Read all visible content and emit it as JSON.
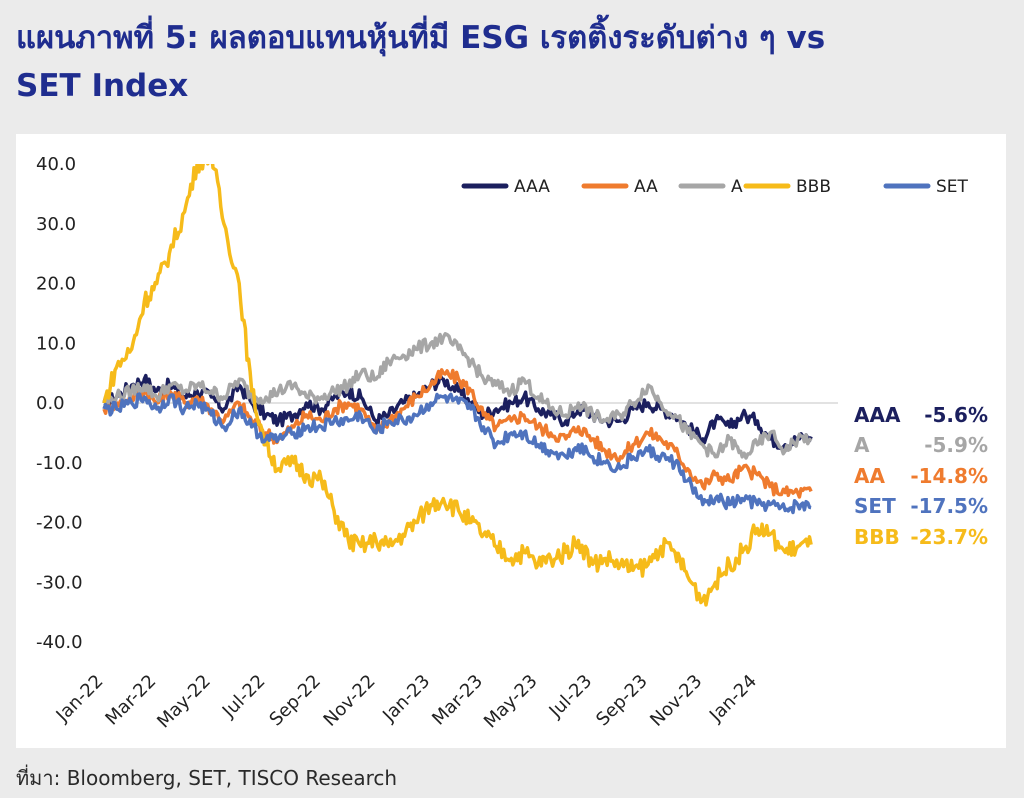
{
  "title_line1": "แผนภาพที่ 5: ผลตอบแทนหุ้นที่มี ESG เรตติ้งระดับต่าง ๆ vs",
  "title_line2": "SET Index",
  "source": "ที่มา: Bloomberg, SET, TISCO Research",
  "chart_data": {
    "type": "line",
    "title": "",
    "xlabel": "",
    "ylabel": "",
    "ylim": [
      -40,
      40
    ],
    "xlim": [
      "2022-01-01",
      "2024-03-31"
    ],
    "y_ticks": [
      "40.0",
      "30.0",
      "20.0",
      "10.0",
      "0.0",
      "-10.0",
      "-20.0",
      "-30.0",
      "-40.0"
    ],
    "x_ticks": [
      {
        "date": "2022-01-01",
        "label": "Jan-22"
      },
      {
        "date": "2022-03-01",
        "label": "Mar-22"
      },
      {
        "date": "2022-05-01",
        "label": "May-22"
      },
      {
        "date": "2022-07-01",
        "label": "Jul-22"
      },
      {
        "date": "2022-09-01",
        "label": "Sep-22"
      },
      {
        "date": "2022-11-01",
        "label": "Nov-22"
      },
      {
        "date": "2023-01-01",
        "label": "Jan-23"
      },
      {
        "date": "2023-03-01",
        "label": "Mar-23"
      },
      {
        "date": "2023-05-01",
        "label": "May-23"
      },
      {
        "date": "2023-07-01",
        "label": "Jul-23"
      },
      {
        "date": "2023-09-01",
        "label": "Sep-23"
      },
      {
        "date": "2023-11-01",
        "label": "Nov-23"
      },
      {
        "date": "2024-01-01",
        "label": "Jan-24"
      }
    ],
    "legend_position": "top-right",
    "grid": false,
    "zero_line": true,
    "x": [
      "2022-01-01",
      "2022-01-15",
      "2022-02-01",
      "2022-02-15",
      "2022-03-01",
      "2022-03-15",
      "2022-04-01",
      "2022-04-15",
      "2022-05-01",
      "2022-05-15",
      "2022-06-01",
      "2022-06-15",
      "2022-07-01",
      "2022-07-15",
      "2022-08-01",
      "2022-08-15",
      "2022-09-01",
      "2022-09-15",
      "2022-10-01",
      "2022-10-15",
      "2022-11-01",
      "2022-11-15",
      "2022-12-01",
      "2022-12-15",
      "2023-01-01",
      "2023-01-15",
      "2023-02-01",
      "2023-02-15",
      "2023-03-01",
      "2023-03-15",
      "2023-04-01",
      "2023-04-15",
      "2023-05-01",
      "2023-05-15",
      "2023-06-01",
      "2023-06-15",
      "2023-07-01",
      "2023-07-15",
      "2023-08-01",
      "2023-08-15",
      "2023-09-01",
      "2023-09-15",
      "2023-10-01",
      "2023-10-15",
      "2023-11-01",
      "2023-11-15",
      "2023-12-01",
      "2023-12-15",
      "2024-01-01",
      "2024-01-15",
      "2024-02-01",
      "2024-02-15",
      "2024-03-01"
    ],
    "series": [
      {
        "name": "AAA",
        "color": "#1b1f5e",
        "end_value": "-5.6%",
        "values": [
          0,
          1,
          3,
          4,
          2,
          3,
          1,
          2,
          1,
          -1,
          3,
          0,
          -2,
          -3,
          -2,
          0,
          -1,
          1,
          2,
          1,
          -3,
          -2,
          0,
          1,
          3,
          4,
          2,
          0,
          -2,
          -1,
          0,
          1,
          -1,
          -2,
          -3,
          -1,
          -2,
          -3,
          -3,
          -1,
          0,
          -1,
          -2,
          -4,
          -6,
          -3,
          -4,
          -2,
          -3,
          -6,
          -7,
          -6,
          -5.6
        ]
      },
      {
        "name": "AA",
        "color": "#ef7b2e",
        "end_value": "-14.8%",
        "values": [
          -1,
          0,
          1,
          2,
          0,
          2,
          0,
          1,
          -1,
          -3,
          0,
          -3,
          -5,
          -6,
          -4,
          -2,
          -3,
          -1,
          0,
          -1,
          -5,
          -3,
          -1,
          1,
          3,
          5,
          4,
          2,
          -2,
          -4,
          -3,
          -2,
          -4,
          -5,
          -6,
          -4,
          -6,
          -8,
          -9,
          -7,
          -5,
          -6,
          -8,
          -11,
          -14,
          -12,
          -13,
          -11,
          -12,
          -14,
          -15,
          -15,
          -14.8
        ]
      },
      {
        "name": "A",
        "color": "#a6a6a6",
        "end_value": "-5.9%",
        "values": [
          0,
          1,
          2,
          3,
          1,
          3,
          2,
          3,
          2,
          1,
          4,
          1,
          1,
          2,
          3,
          1,
          1,
          2,
          3,
          5,
          4,
          7,
          8,
          9,
          10,
          11,
          9,
          7,
          4,
          3,
          2,
          4,
          1,
          -1,
          -2,
          0,
          -2,
          -3,
          -2,
          0,
          3,
          0,
          -2,
          -5,
          -7,
          -9,
          -6,
          -9,
          -7,
          -5,
          -8,
          -6,
          -5.9
        ]
      },
      {
        "name": "BBB",
        "color": "#f6bb1a",
        "end_value": "-23.7%",
        "values": [
          0,
          6,
          9,
          17,
          20,
          25,
          32,
          40,
          42,
          30,
          20,
          2,
          -7,
          -11,
          -10,
          -12,
          -13,
          -18,
          -23,
          -24,
          -23,
          -24,
          -22,
          -20,
          -17,
          -16,
          -18,
          -20,
          -22,
          -24,
          -26,
          -25,
          -27,
          -26,
          -25,
          -23,
          -27,
          -26,
          -27,
          -28,
          -27,
          -24,
          -25,
          -29,
          -33,
          -30,
          -27,
          -25,
          -21,
          -22,
          -25,
          -24,
          -23.7
        ]
      },
      {
        "name": "SET",
        "color": "#4f73be",
        "end_value": "-17.5%",
        "values": [
          -1,
          -1,
          0,
          1,
          -1,
          1,
          -1,
          0,
          -2,
          -4,
          -1,
          -4,
          -6,
          -6,
          -5,
          -4,
          -4,
          -3,
          -3,
          -2,
          -5,
          -3,
          -3,
          -2,
          0,
          1,
          0,
          -1,
          -4,
          -7,
          -5,
          -5,
          -7,
          -8,
          -9,
          -7,
          -9,
          -10,
          -11,
          -9,
          -8,
          -9,
          -10,
          -13,
          -17,
          -16,
          -17,
          -16,
          -17,
          -17,
          -18,
          -17,
          -17.5
        ]
      }
    ],
    "end_labels_order": [
      "AAA",
      "A",
      "AA",
      "SET",
      "BBB"
    ]
  }
}
